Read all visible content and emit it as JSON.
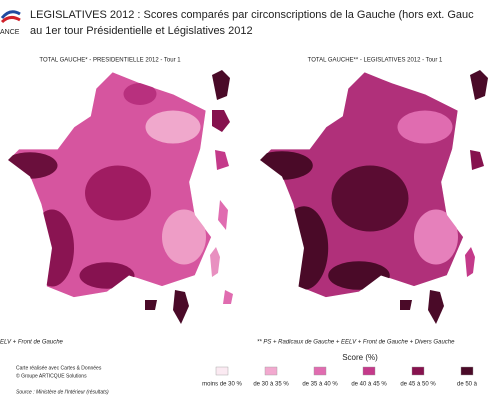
{
  "header": {
    "logo": "ANCE",
    "title_line1": "LEGISLATIVES 2012 : Scores comparés par circonscriptions de la Gauche (hors ext. Gauc",
    "title_line2": "au 1er tour Présidentielle et Législatives 2012"
  },
  "maps": [
    {
      "title": "TOTAL GAUCHE* - PRESIDENTIELLE 2012 - Tour 1",
      "note": "ELV + Front de Gauche"
    },
    {
      "title": "TOTAL GAUCHE** - LEGISLATIVES 2012 - Tour 1",
      "note": "** PS + Radicaux de Gauche + EELV + Front de Gauche + Divers Gauche"
    }
  ],
  "credits": [
    "Carte réalisée avec Cartes & Données",
    "© Groupe ARTICQUE Solutions",
    "Source : Ministère de l'Intérieur (résultats)"
  ],
  "legend": {
    "title": "Score (%)",
    "classes": [
      {
        "label": "moins de 30 %",
        "color": "#fbeaf2"
      },
      {
        "label": "de 30 à 35 %",
        "color": "#f2a9cf"
      },
      {
        "label": "de 35 à 40 %",
        "color": "#e06cb0"
      },
      {
        "label": "de 40 à 45 %",
        "color": "#c43a8a"
      },
      {
        "label": "de 45 à 50 %",
        "color": "#86124e"
      },
      {
        "label": "de 50 à",
        "color": "#4a0a28"
      }
    ]
  }
}
